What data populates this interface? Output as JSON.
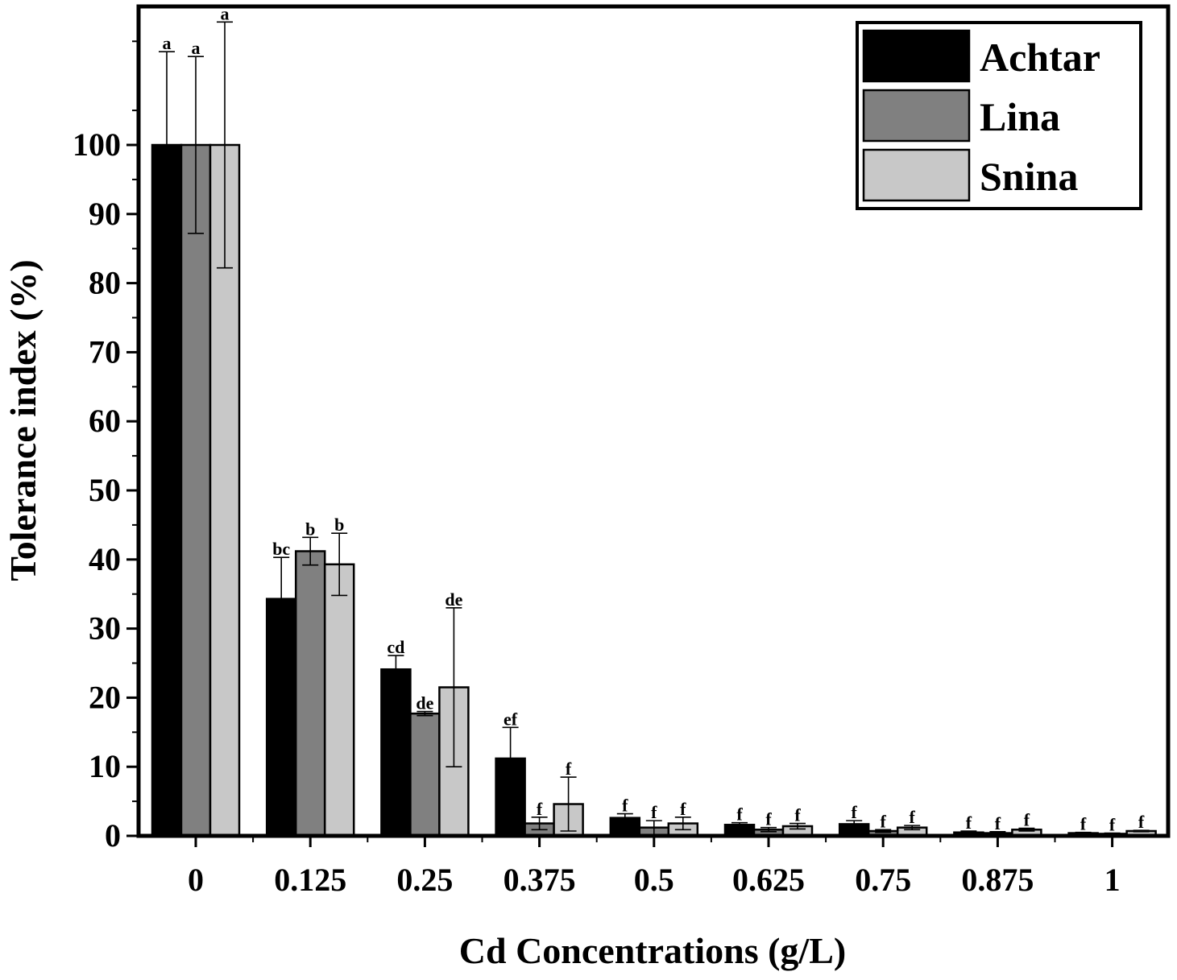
{
  "chart_data": {
    "type": "bar",
    "title": "",
    "xlabel": "Cd Concentrations (g/L)",
    "ylabel": "Tolerance index (%)",
    "ylim": [
      0,
      120
    ],
    "yticks": [
      0,
      10,
      20,
      30,
      40,
      50,
      60,
      70,
      80,
      90,
      100
    ],
    "grid": false,
    "legend_position": "top-right",
    "categories": [
      "0",
      "0.125",
      "0.25",
      "0.375",
      "0.5",
      "0.625",
      "0.75",
      "0.875",
      "1"
    ],
    "series": [
      {
        "name": "Achtar",
        "color": "#000000",
        "values": [
          100,
          34.3,
          24.1,
          11.2,
          2.6,
          1.6,
          1.7,
          0.5,
          0.4
        ],
        "errors": [
          13.5,
          6.0,
          2.0,
          4.5,
          0.6,
          0.3,
          0.5,
          0.2,
          0.1
        ],
        "labels": [
          "a",
          "bc",
          "cd",
          "ef",
          "f",
          "f",
          "f",
          "f",
          "f"
        ]
      },
      {
        "name": "Lina",
        "color": "#808080",
        "values": [
          100,
          41.2,
          17.7,
          1.8,
          1.2,
          0.9,
          0.7,
          0.4,
          0.3
        ],
        "errors": [
          12.8,
          2.0,
          0.3,
          0.9,
          1.0,
          0.3,
          0.2,
          0.2,
          0.1
        ],
        "labels": [
          "a",
          "b",
          "de",
          "f",
          "f",
          "f",
          "f",
          "f",
          "f"
        ]
      },
      {
        "name": "Snina",
        "color": "#c8c8c8",
        "values": [
          100,
          39.3,
          21.5,
          4.6,
          1.8,
          1.4,
          1.2,
          0.9,
          0.7
        ],
        "errors": [
          17.8,
          4.5,
          11.5,
          3.9,
          0.9,
          0.4,
          0.3,
          0.2,
          0.1
        ],
        "labels": [
          "a",
          "b",
          "de",
          "f",
          "f",
          "f",
          "f",
          "f",
          "f"
        ]
      }
    ]
  }
}
